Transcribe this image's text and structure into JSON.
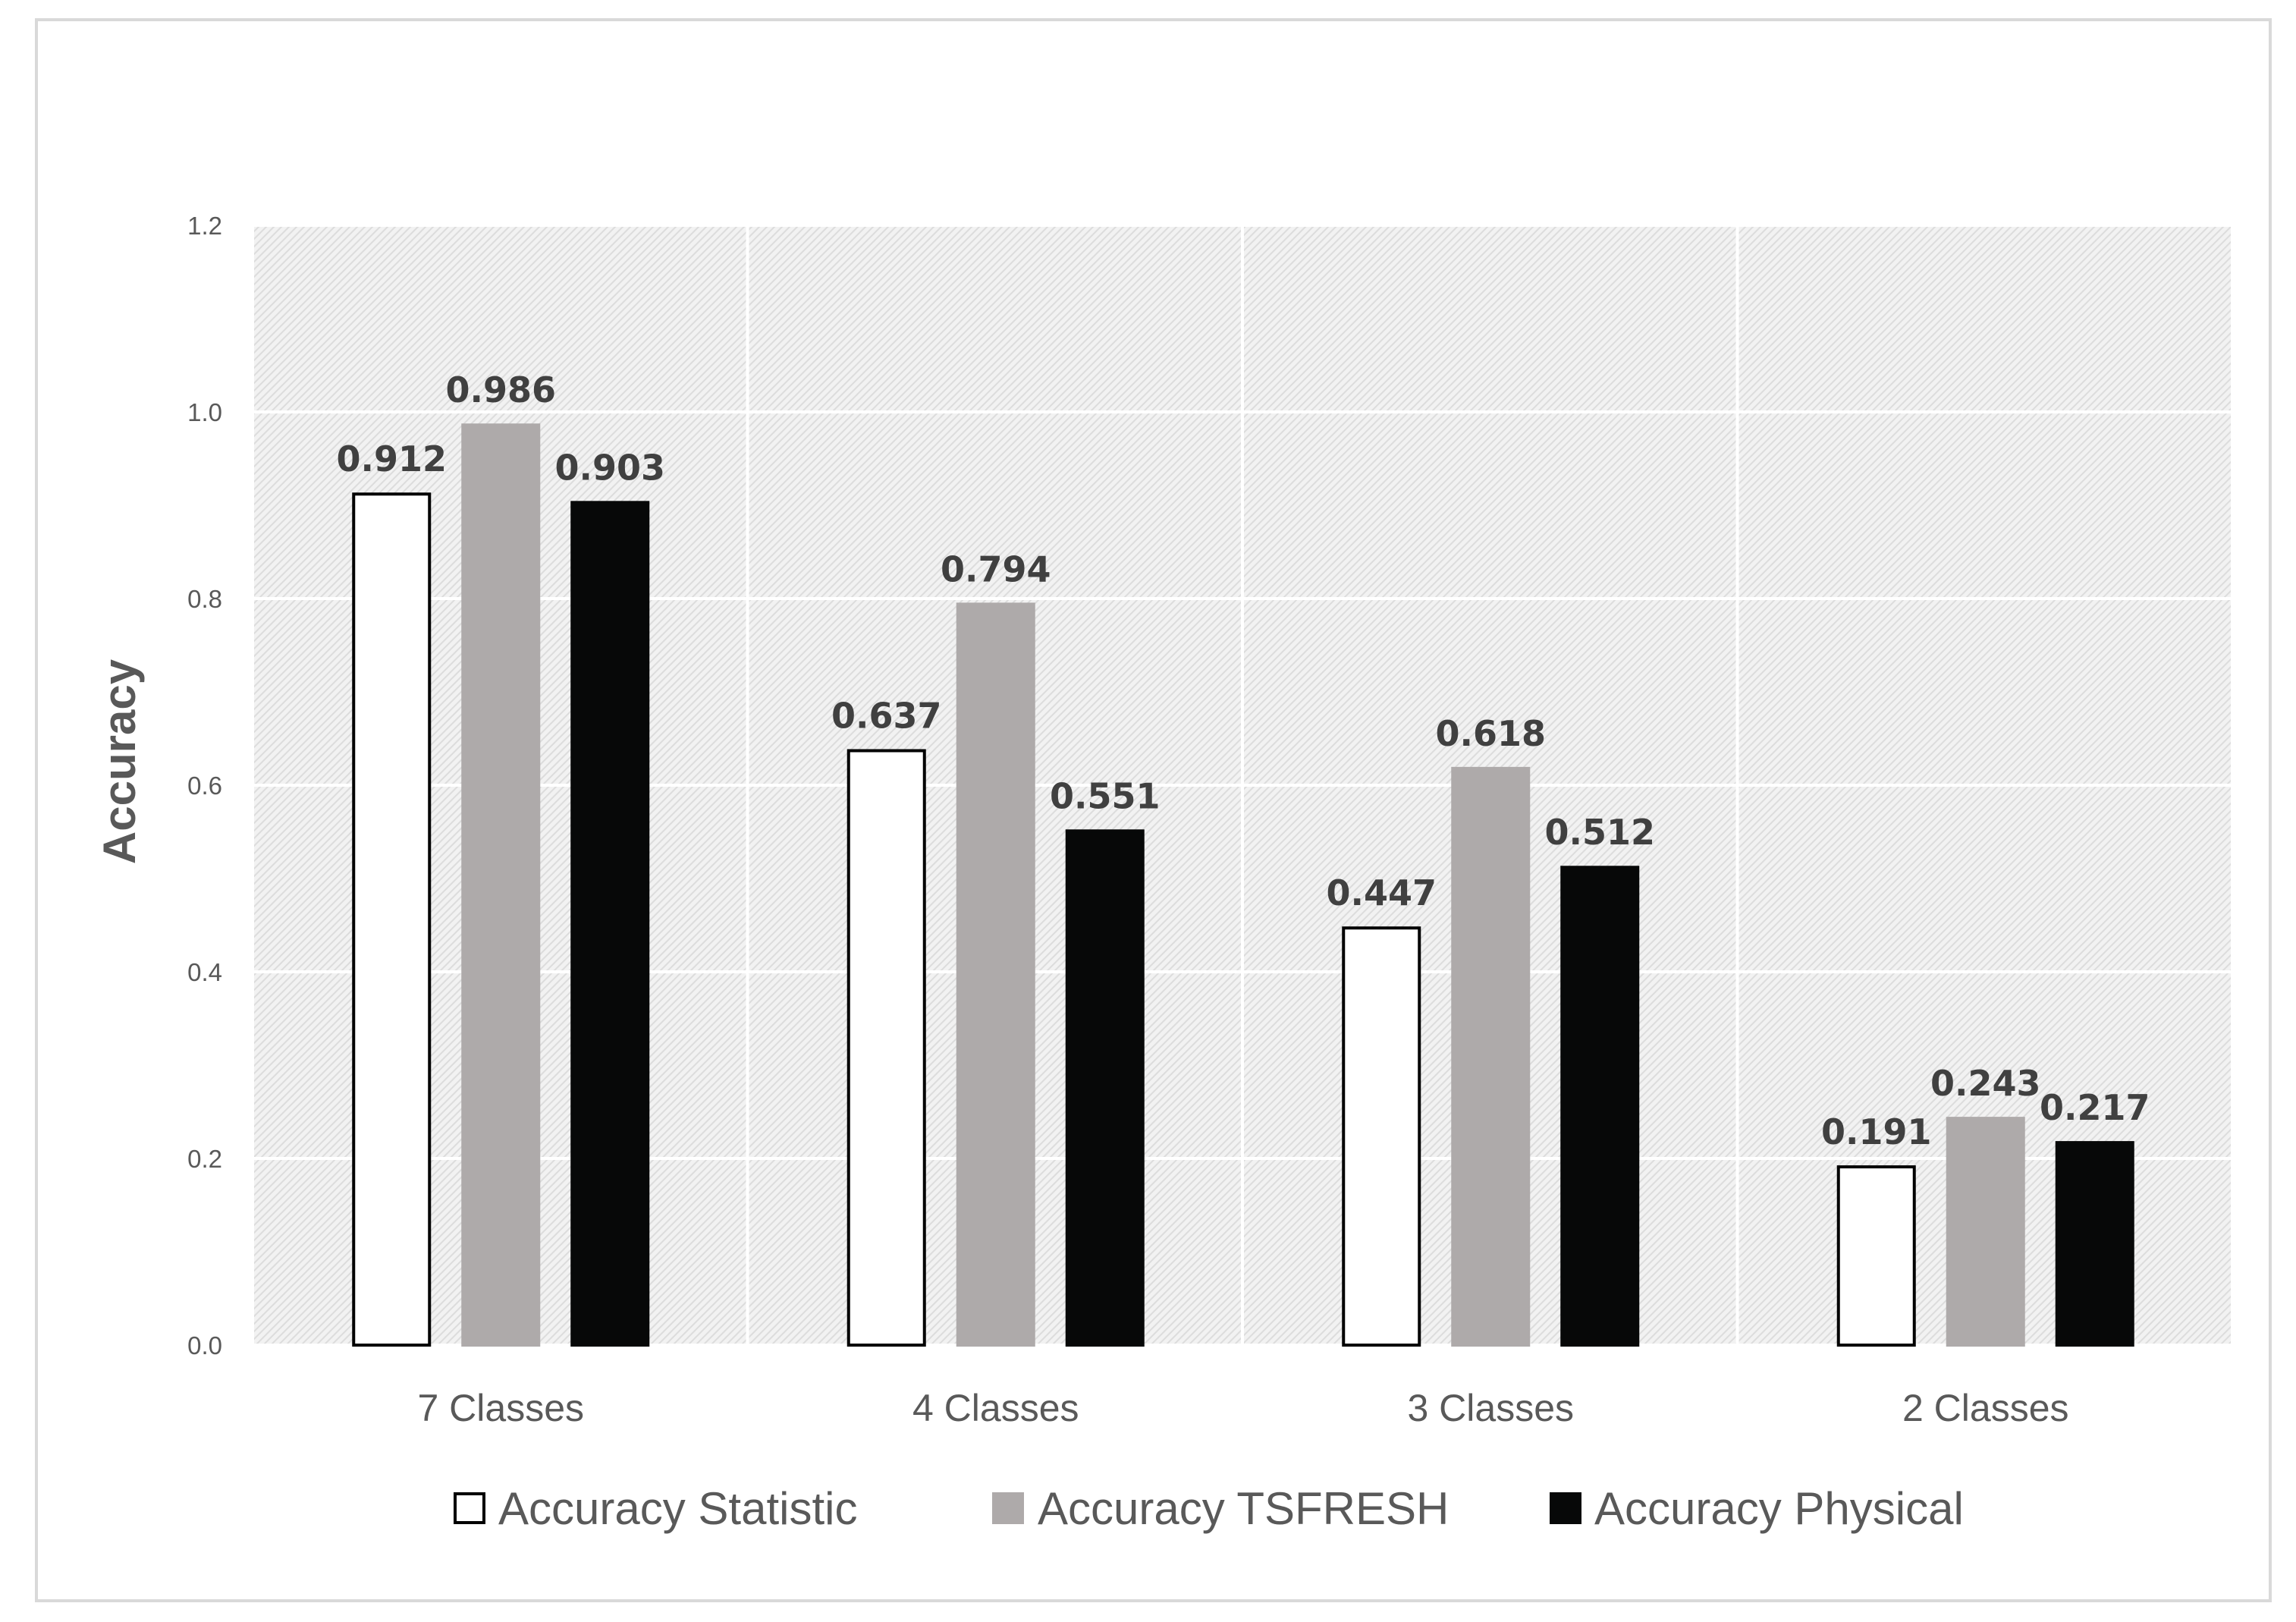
{
  "chart_data": {
    "type": "bar",
    "title": "",
    "xlabel": "",
    "ylabel": "Accuracy",
    "ylim": [
      0,
      1.2
    ],
    "yticks": [
      "0.0",
      "0.2",
      "0.4",
      "0.6",
      "0.8",
      "1.0",
      "1.2"
    ],
    "ytick_values": [
      0,
      0.2,
      0.4,
      0.6,
      0.8,
      1.0,
      1.2
    ],
    "categories": [
      "7 Classes",
      "4 Classes",
      "3 Classes",
      "2 Classes"
    ],
    "series": [
      {
        "name": "Accuracy Statistic",
        "color": "#ffffff",
        "stroke": "#000000",
        "values": [
          0.912,
          0.637,
          0.447,
          0.191
        ],
        "labels": [
          "0.912",
          "0.637",
          "0.447",
          "0.191"
        ]
      },
      {
        "name": "Accuracy TSFRESH",
        "color": "#aeaaaa",
        "stroke": "#aeaaaa",
        "values": [
          0.986,
          0.794,
          0.618,
          0.243
        ],
        "labels": [
          "0.986",
          "0.794",
          "0.618",
          "0.243"
        ]
      },
      {
        "name": "Accuracy Physical",
        "color": "#070808",
        "stroke": "#070808",
        "values": [
          0.903,
          0.551,
          0.512,
          0.217
        ],
        "labels": [
          "0.903",
          "0.551",
          "0.512",
          "0.217"
        ]
      }
    ],
    "grid": true,
    "legend_position": "bottom"
  }
}
